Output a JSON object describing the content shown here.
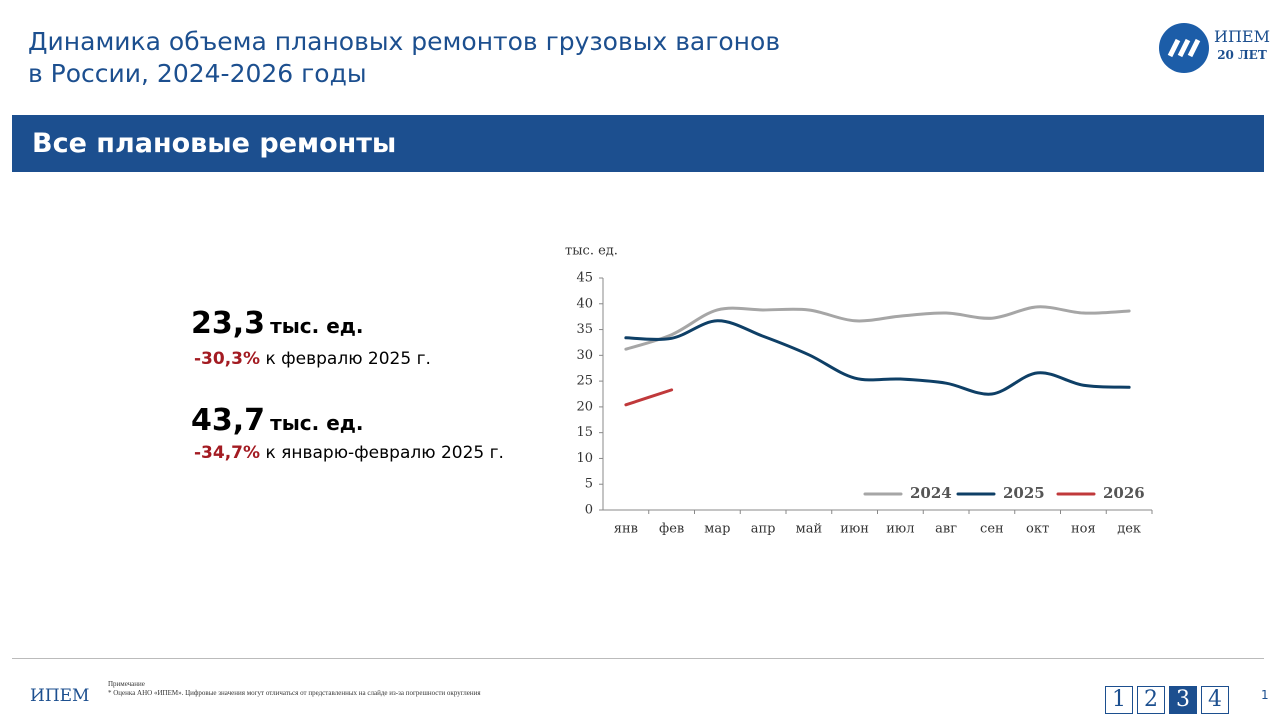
{
  "header": {
    "title_line1": "Динамика объема плановых ремонтов грузовых вагонов",
    "title_line2": "в России, 2024-2026 годы",
    "logo_name": "ИПЕМ",
    "logo_years": "20 ЛЕТ"
  },
  "section_title": "Все плановые ремонты",
  "stats": [
    {
      "value": "23,3",
      "unit": "тыс. ед.",
      "change": "-30,3%",
      "comment": "к февралю 2025 г."
    },
    {
      "value": "43,7",
      "unit": "тыс. ед.",
      "change": "-34,7%",
      "comment": "к январю-февралю 2025 г."
    }
  ],
  "chart_data": {
    "type": "line",
    "y_label": "тыс. ед.",
    "categories": [
      "янв",
      "фев",
      "мар",
      "апр",
      "май",
      "июн",
      "июл",
      "авг",
      "сен",
      "окт",
      "ноя",
      "дек"
    ],
    "series": [
      {
        "name": "2024",
        "color": "#a6a6a6",
        "values": [
          31.2,
          34,
          38.8,
          38.8,
          38.8,
          36.7,
          37.6,
          38.2,
          37.2,
          39.4,
          38.2,
          38.6
        ]
      },
      {
        "name": "2025",
        "color": "#0e3f66",
        "values": [
          33.4,
          33.3,
          36.7,
          33.7,
          30.1,
          25.6,
          25.4,
          24.6,
          22.5,
          26.6,
          24.2,
          23.8
        ]
      },
      {
        "name": "2026",
        "color": "#c0393b",
        "values": [
          20.4,
          23.3,
          null,
          null,
          null,
          null,
          null,
          null,
          null,
          null,
          null,
          null
        ]
      }
    ],
    "ylim": [
      0,
      45
    ],
    "yticks": [
      0,
      5,
      10,
      15,
      20,
      25,
      30,
      35,
      40,
      45
    ],
    "grid": false,
    "legend": "bottom-right"
  },
  "footer": {
    "brand": "ИПЕМ",
    "note_title": "Примечание",
    "note": "* Оценка АНО «ИПЕМ». Цифровые значения могут отличаться от представленных на слайде из-за погрешности округления",
    "pages": [
      "1",
      "2",
      "3",
      "4"
    ],
    "current_page": "3",
    "slide_number": "1"
  }
}
